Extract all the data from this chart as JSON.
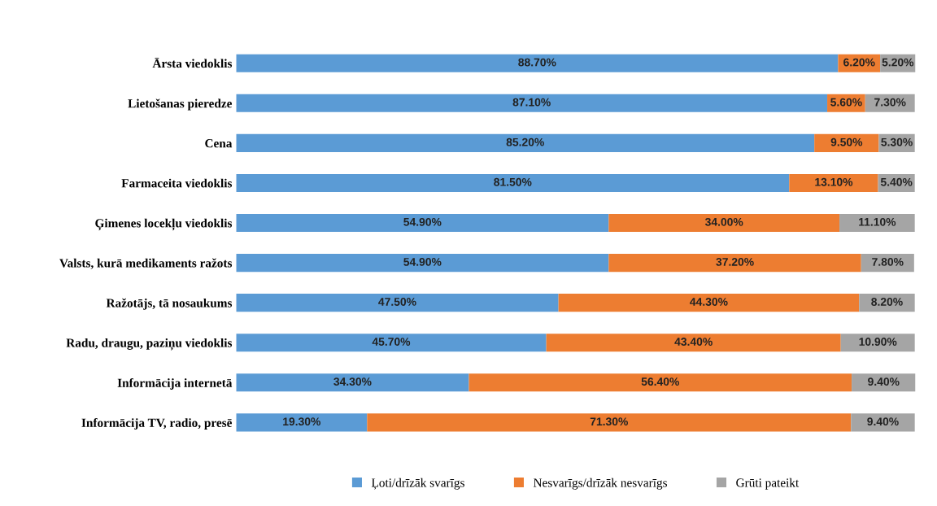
{
  "chart_data": {
    "type": "bar",
    "orientation": "horizontal",
    "stacked": true,
    "legend": "bottom",
    "grid": false,
    "tick_labels": "y",
    "categories": [
      "Ārsta viedoklis",
      "Lietošanas pieredze",
      "Cena",
      "Farmaceita viedoklis",
      "Ģimenes locekļu viedoklis",
      "Valsts, kurā medikaments ražots",
      "Ražotājs, tā nosaukums",
      "Radu, draugu, paziņu viedoklis",
      "Informācija internetā",
      "Informācija TV, radio, presē"
    ],
    "series": [
      {
        "name": "Ļoti/drīzāk svarīgs",
        "color": "#5b9bd5",
        "values": [
          88.7,
          87.1,
          85.2,
          81.5,
          54.9,
          54.9,
          47.5,
          45.7,
          34.3,
          19.3
        ],
        "value_labels": [
          "88.70%",
          "87.10%",
          "85.20%",
          "81.50%",
          "54.90%",
          "54.90%",
          "47.50%",
          "45.70%",
          "34.30%",
          "19.30%"
        ]
      },
      {
        "name": "Nesvarīgs/drīzāk nesvarīgs",
        "color": "#ed7d31",
        "values": [
          6.2,
          5.6,
          9.5,
          13.1,
          34.0,
          37.2,
          44.3,
          43.4,
          56.4,
          71.3
        ],
        "value_labels": [
          "6.20%",
          "5.60%",
          "9.50%",
          "13.10%",
          "34.00%",
          "37.20%",
          "44.30%",
          "43.40%",
          "56.40%",
          "71.30%"
        ]
      },
      {
        "name": "Grūti pateikt",
        "color": "#a5a5a5",
        "values": [
          5.2,
          7.3,
          5.3,
          5.4,
          11.1,
          7.8,
          8.2,
          10.9,
          9.4,
          9.4
        ],
        "value_labels": [
          "5.20%",
          "7.30%",
          "5.30%",
          "5.40%",
          "11.10%",
          "7.80%",
          "8.20%",
          "10.90%",
          "9.40%",
          "9.40%"
        ]
      }
    ]
  }
}
